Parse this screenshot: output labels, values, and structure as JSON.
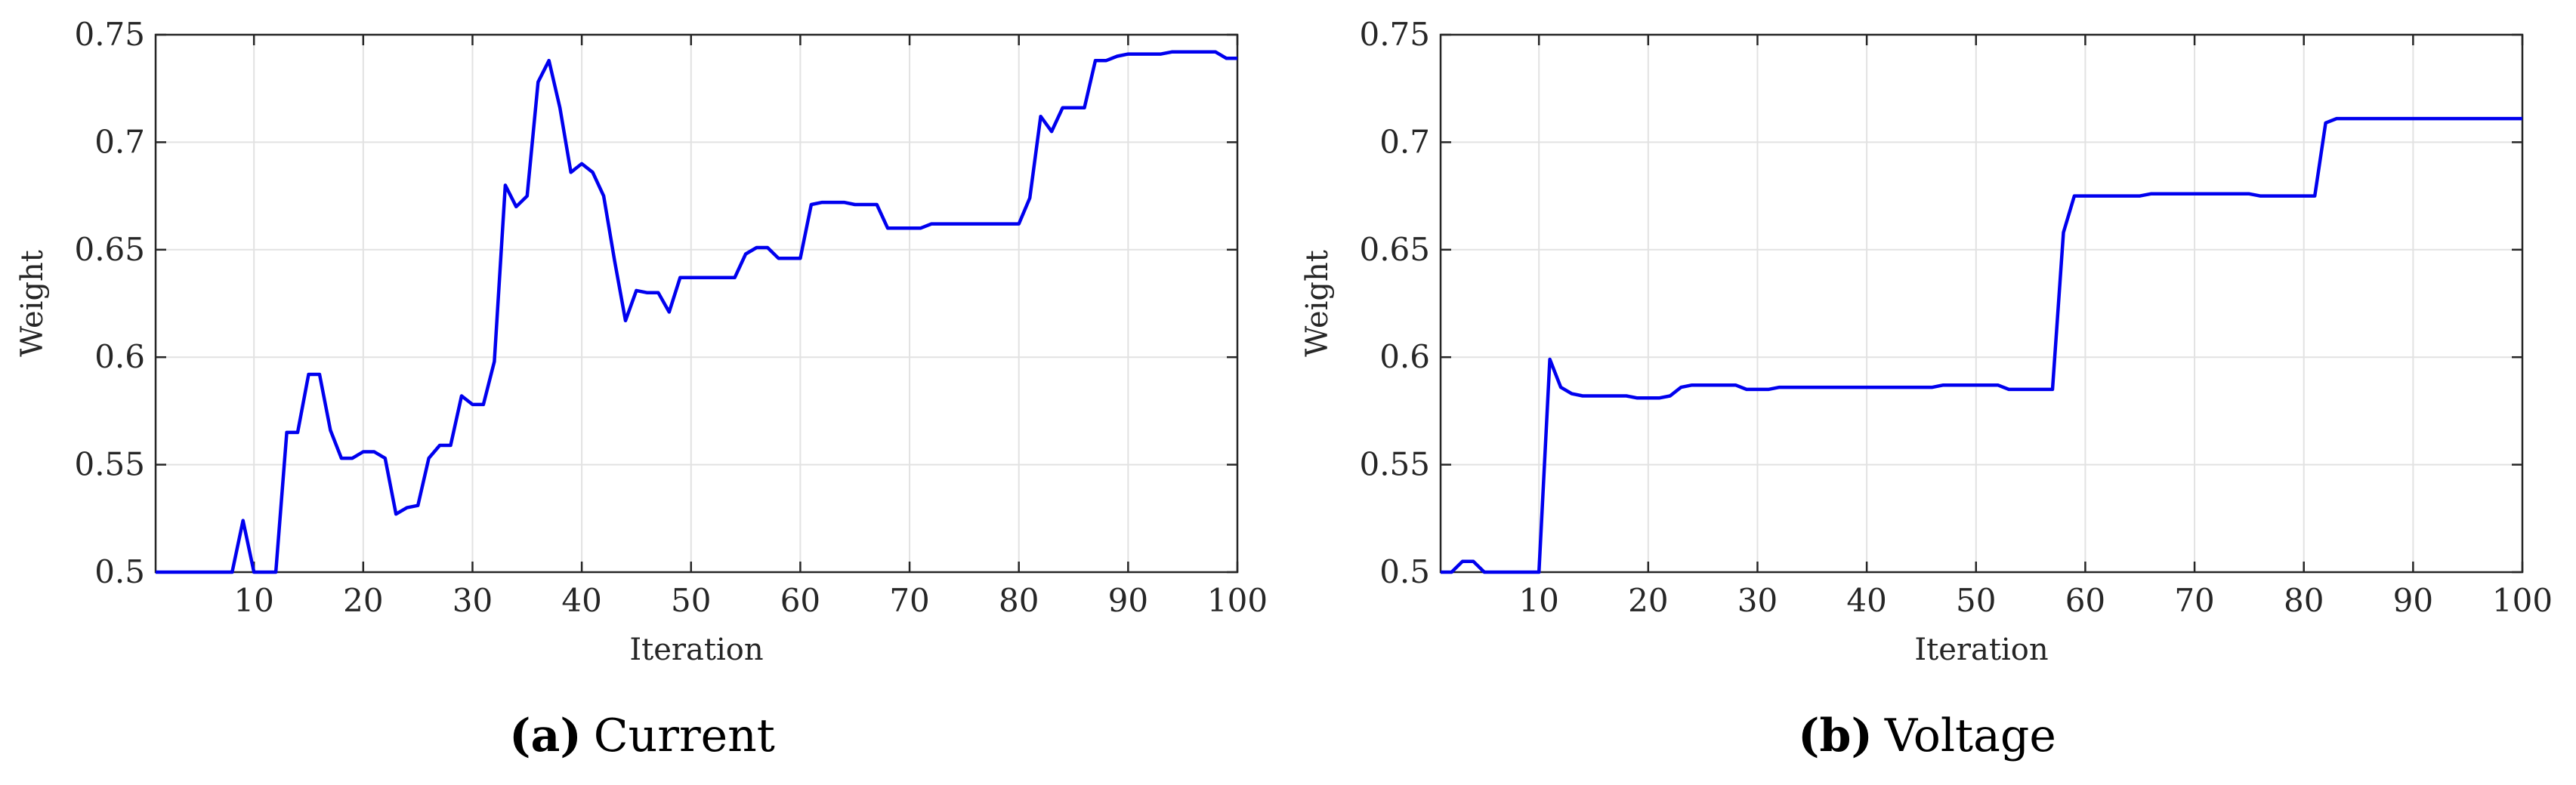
{
  "chart_data": [
    {
      "type": "line",
      "xlabel": "Iteration",
      "ylabel": "Weight",
      "xlim": [
        1,
        100
      ],
      "ylim": [
        0.5,
        0.75
      ],
      "xticks": [
        10,
        20,
        30,
        40,
        50,
        60,
        70,
        80,
        90,
        100
      ],
      "yticks": [
        0.5,
        0.55,
        0.6,
        0.65,
        0.7,
        0.75
      ],
      "ytick_labels": [
        "0.5",
        "0.55",
        "0.6",
        "0.65",
        "0.7",
        "0.75"
      ],
      "grid": true,
      "line_color": "#0000ee",
      "caption_letter": "(a)",
      "caption_text": "Current",
      "series": [
        {
          "x": [
            1,
            2,
            3,
            4,
            5,
            6,
            7,
            8,
            9,
            10,
            11,
            12,
            13,
            14,
            15,
            16,
            17,
            18,
            19,
            20,
            21,
            22,
            23,
            24,
            25,
            26,
            27,
            28,
            29,
            30,
            31,
            32,
            33,
            34,
            35,
            36,
            37,
            38,
            39,
            40,
            41,
            42,
            43,
            44,
            45,
            46,
            47,
            48,
            49,
            50,
            51,
            52,
            53,
            54,
            55,
            56,
            57,
            58,
            59,
            60,
            61,
            62,
            63,
            64,
            65,
            66,
            67,
            68,
            69,
            70,
            71,
            72,
            73,
            74,
            75,
            76,
            77,
            78,
            79,
            80,
            81,
            82,
            83,
            84,
            85,
            86,
            87,
            88,
            89,
            90,
            91,
            92,
            93,
            94,
            95,
            96,
            97,
            98,
            99,
            100
          ],
          "y": [
            0.5,
            0.5,
            0.5,
            0.5,
            0.5,
            0.5,
            0.5,
            0.5,
            0.524,
            0.5,
            0.5,
            0.5,
            0.565,
            0.565,
            0.592,
            0.592,
            0.566,
            0.553,
            0.553,
            0.556,
            0.556,
            0.553,
            0.527,
            0.53,
            0.531,
            0.553,
            0.559,
            0.559,
            0.582,
            0.578,
            0.578,
            0.598,
            0.68,
            0.67,
            0.675,
            0.728,
            0.738,
            0.716,
            0.686,
            0.69,
            0.686,
            0.675,
            0.645,
            0.617,
            0.631,
            0.63,
            0.63,
            0.621,
            0.637,
            0.637,
            0.637,
            0.637,
            0.637,
            0.637,
            0.648,
            0.651,
            0.651,
            0.646,
            0.646,
            0.646,
            0.671,
            0.672,
            0.672,
            0.672,
            0.671,
            0.671,
            0.671,
            0.66,
            0.66,
            0.66,
            0.66,
            0.662,
            0.662,
            0.662,
            0.662,
            0.662,
            0.662,
            0.662,
            0.662,
            0.662,
            0.674,
            0.712,
            0.705,
            0.716,
            0.716,
            0.716,
            0.738,
            0.738,
            0.74,
            0.741,
            0.741,
            0.741,
            0.741,
            0.742,
            0.742,
            0.742,
            0.742,
            0.742,
            0.739,
            0.739
          ]
        }
      ]
    },
    {
      "type": "line",
      "xlabel": "Iteration",
      "ylabel": "Weight",
      "xlim": [
        1,
        100
      ],
      "ylim": [
        0.5,
        0.75
      ],
      "xticks": [
        10,
        20,
        30,
        40,
        50,
        60,
        70,
        80,
        90,
        100
      ],
      "yticks": [
        0.5,
        0.55,
        0.6,
        0.65,
        0.7,
        0.75
      ],
      "ytick_labels": [
        "0.5",
        "0.55",
        "0.6",
        "0.65",
        "0.7",
        "0.75"
      ],
      "grid": true,
      "line_color": "#0000ee",
      "caption_letter": "(b)",
      "caption_text": "Voltage",
      "series": [
        {
          "x": [
            1,
            2,
            3,
            4,
            5,
            6,
            7,
            8,
            9,
            10,
            11,
            12,
            13,
            14,
            15,
            16,
            17,
            18,
            19,
            20,
            21,
            22,
            23,
            24,
            25,
            26,
            27,
            28,
            29,
            30,
            31,
            32,
            33,
            34,
            35,
            36,
            37,
            38,
            39,
            40,
            41,
            42,
            43,
            44,
            45,
            46,
            47,
            48,
            49,
            50,
            51,
            52,
            53,
            54,
            55,
            56,
            57,
            58,
            59,
            60,
            61,
            62,
            63,
            64,
            65,
            66,
            67,
            68,
            69,
            70,
            71,
            72,
            73,
            74,
            75,
            76,
            77,
            78,
            79,
            80,
            81,
            82,
            83,
            84,
            85,
            86,
            87,
            88,
            89,
            90,
            91,
            92,
            93,
            94,
            95,
            96,
            97,
            98,
            99,
            100
          ],
          "y": [
            0.5,
            0.5,
            0.505,
            0.505,
            0.5,
            0.5,
            0.5,
            0.5,
            0.5,
            0.5,
            0.599,
            0.586,
            0.583,
            0.582,
            0.582,
            0.582,
            0.582,
            0.582,
            0.581,
            0.581,
            0.581,
            0.582,
            0.586,
            0.587,
            0.587,
            0.587,
            0.587,
            0.587,
            0.585,
            0.585,
            0.585,
            0.586,
            0.586,
            0.586,
            0.586,
            0.586,
            0.586,
            0.586,
            0.586,
            0.586,
            0.586,
            0.586,
            0.586,
            0.586,
            0.586,
            0.586,
            0.587,
            0.587,
            0.587,
            0.587,
            0.587,
            0.587,
            0.585,
            0.585,
            0.585,
            0.585,
            0.585,
            0.658,
            0.675,
            0.675,
            0.675,
            0.675,
            0.675,
            0.675,
            0.675,
            0.676,
            0.676,
            0.676,
            0.676,
            0.676,
            0.676,
            0.676,
            0.676,
            0.676,
            0.676,
            0.675,
            0.675,
            0.675,
            0.675,
            0.675,
            0.675,
            0.709,
            0.711,
            0.711,
            0.711,
            0.711,
            0.711,
            0.711,
            0.711,
            0.711,
            0.711,
            0.711,
            0.711,
            0.711,
            0.711,
            0.711,
            0.711,
            0.711,
            0.711,
            0.711
          ]
        }
      ]
    }
  ]
}
